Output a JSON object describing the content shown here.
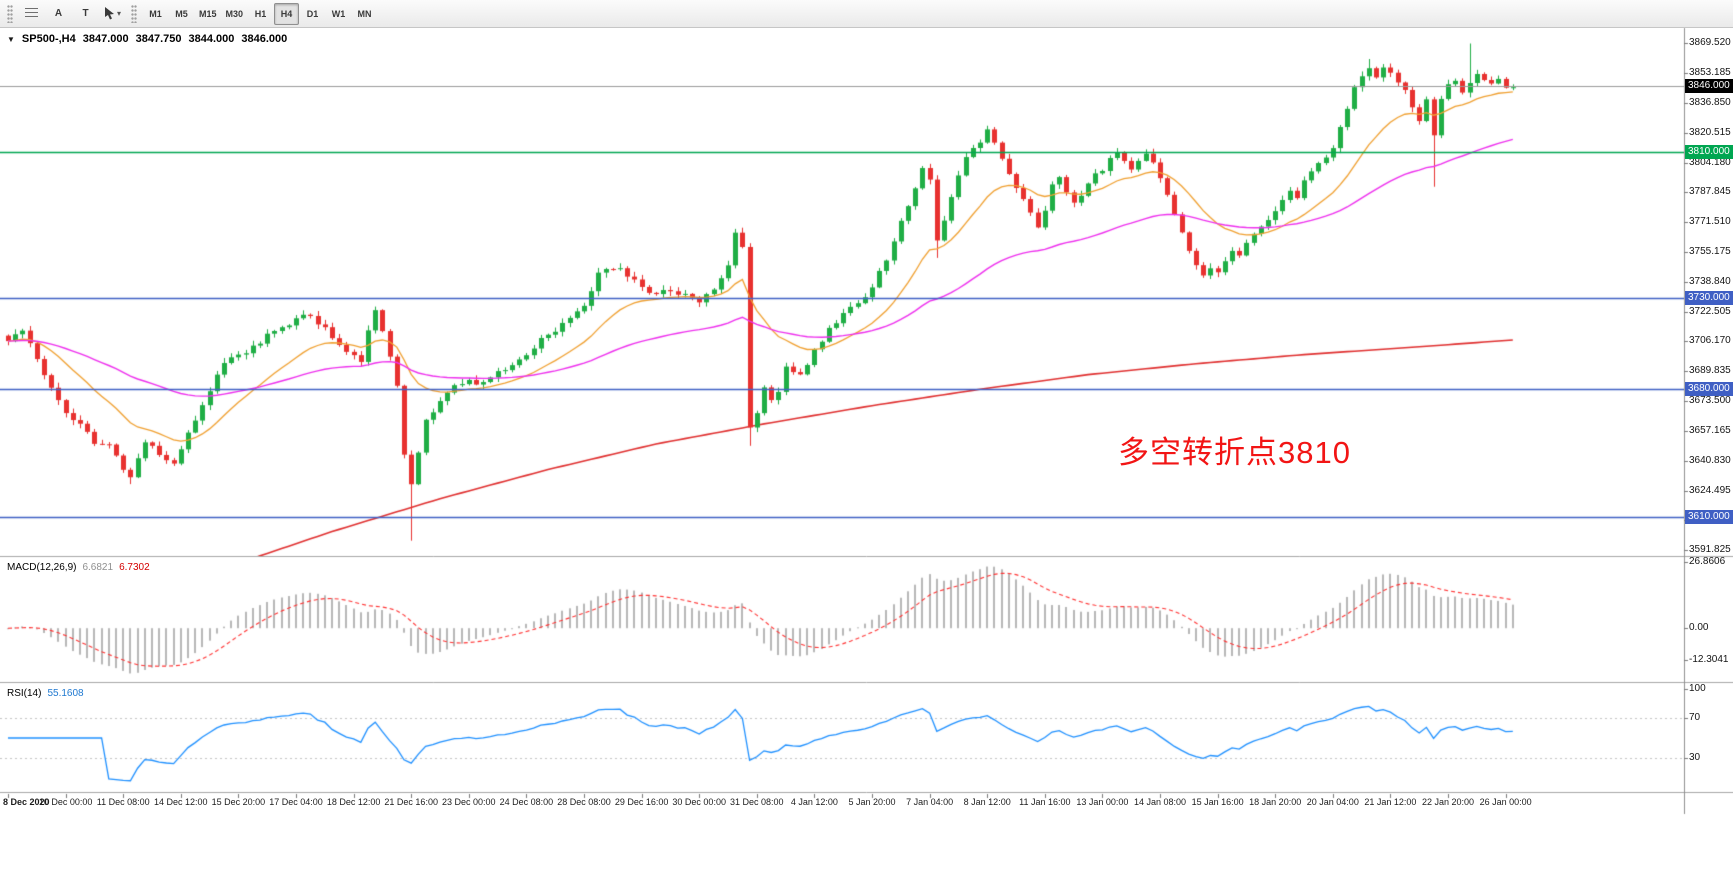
{
  "toolbar": {
    "buttons": {
      "a_label": "A",
      "t_label": "T"
    },
    "timeframes": [
      "M1",
      "M5",
      "M15",
      "M30",
      "H1",
      "H4",
      "D1",
      "W1",
      "MN"
    ],
    "active_timeframe": "H4"
  },
  "chart": {
    "title": {
      "collapse_icon": "▼",
      "symbol_period": "SP500-,H4",
      "open": "3847.000",
      "high": "3847.750",
      "low": "3844.000",
      "close": "3846.000"
    },
    "bid": {
      "price": 3846.0,
      "label": "3846.000",
      "tag_color": "#000000",
      "line_color": "#9a9a9a"
    }
  },
  "indicators": {
    "macd": {
      "label": "MACD(12,26,9)",
      "value_main": "6.6821",
      "value_signal": "6.7302"
    },
    "rsi": {
      "label": "RSI(14)",
      "value": "55.1608"
    }
  },
  "chart_data": [
    {
      "type": "candlestick",
      "title": "SP500-,H4",
      "bars": 210,
      "seed": 20210126,
      "noise": 3.0,
      "ylim": [
        3588.6,
        3878.0
      ],
      "price_axis_labels": [
        "3869.520",
        "3853.185",
        "3836.850",
        "3820.515",
        "3804.180",
        "3787.845",
        "3771.510",
        "3755.175",
        "3738.840",
        "3722.505",
        "3706.170",
        "3689.835",
        "3673.500",
        "3657.165",
        "3640.830",
        "3624.495",
        "3608.160",
        "3591.825"
      ],
      "close_waypoints": [
        [
          0,
          3706
        ],
        [
          2,
          3712
        ],
        [
          4,
          3697
        ],
        [
          6,
          3681
        ],
        [
          8,
          3668
        ],
        [
          10,
          3661
        ],
        [
          12,
          3651
        ],
        [
          14,
          3649
        ],
        [
          16,
          3637
        ],
        [
          17,
          3633
        ],
        [
          19,
          3651
        ],
        [
          21,
          3645
        ],
        [
          23,
          3639
        ],
        [
          25,
          3656
        ],
        [
          27,
          3671
        ],
        [
          29,
          3689
        ],
        [
          31,
          3697
        ],
        [
          33,
          3701
        ],
        [
          35,
          3706
        ],
        [
          37,
          3713
        ],
        [
          39,
          3716
        ],
        [
          41,
          3721
        ],
        [
          43,
          3717
        ],
        [
          45,
          3709
        ],
        [
          47,
          3701
        ],
        [
          49,
          3696
        ],
        [
          50,
          3711
        ],
        [
          51,
          3722
        ],
        [
          52,
          3713
        ],
        [
          53,
          3699
        ],
        [
          54,
          3681
        ],
        [
          55,
          3645
        ],
        [
          56,
          3627
        ],
        [
          57,
          3646
        ],
        [
          58,
          3663
        ],
        [
          60,
          3673
        ],
        [
          62,
          3681
        ],
        [
          64,
          3685
        ],
        [
          66,
          3683
        ],
        [
          68,
          3689
        ],
        [
          70,
          3693
        ],
        [
          72,
          3699
        ],
        [
          74,
          3707
        ],
        [
          76,
          3713
        ],
        [
          78,
          3719
        ],
        [
          80,
          3727
        ],
        [
          82,
          3743
        ],
        [
          84,
          3747
        ],
        [
          86,
          3743
        ],
        [
          88,
          3737
        ],
        [
          90,
          3731
        ],
        [
          92,
          3735
        ],
        [
          94,
          3731
        ],
        [
          96,
          3729
        ],
        [
          98,
          3735
        ],
        [
          100,
          3749
        ],
        [
          101,
          3765
        ],
        [
          102,
          3758
        ],
        [
          103,
          3660
        ],
        [
          104,
          3666
        ],
        [
          105,
          3681
        ],
        [
          106,
          3673
        ],
        [
          107,
          3679
        ],
        [
          108,
          3691
        ],
        [
          110,
          3687
        ],
        [
          112,
          3701
        ],
        [
          114,
          3713
        ],
        [
          116,
          3721
        ],
        [
          118,
          3727
        ],
        [
          120,
          3736
        ],
        [
          122,
          3751
        ],
        [
          124,
          3771
        ],
        [
          126,
          3789
        ],
        [
          127,
          3801
        ],
        [
          128,
          3796
        ],
        [
          129,
          3761
        ],
        [
          130,
          3773
        ],
        [
          131,
          3786
        ],
        [
          132,
          3796
        ],
        [
          133,
          3806
        ],
        [
          134,
          3811
        ],
        [
          135,
          3816
        ],
        [
          136,
          3821
        ],
        [
          137,
          3816
        ],
        [
          138,
          3806
        ],
        [
          139,
          3799
        ],
        [
          140,
          3791
        ],
        [
          141,
          3783
        ],
        [
          142,
          3776
        ],
        [
          143,
          3769
        ],
        [
          144,
          3779
        ],
        [
          145,
          3791
        ],
        [
          146,
          3796
        ],
        [
          147,
          3789
        ],
        [
          148,
          3781
        ],
        [
          149,
          3787
        ],
        [
          150,
          3793
        ],
        [
          151,
          3799
        ],
        [
          152,
          3801
        ],
        [
          153,
          3807
        ],
        [
          154,
          3811
        ],
        [
          155,
          3806
        ],
        [
          156,
          3801
        ],
        [
          157,
          3806
        ],
        [
          158,
          3809
        ],
        [
          159,
          3803
        ],
        [
          160,
          3796
        ],
        [
          161,
          3786
        ],
        [
          162,
          3776
        ],
        [
          163,
          3766
        ],
        [
          164,
          3756
        ],
        [
          165,
          3749
        ],
        [
          166,
          3743
        ],
        [
          167,
          3747
        ],
        [
          168,
          3745
        ],
        [
          169,
          3751
        ],
        [
          170,
          3757
        ],
        [
          171,
          3753
        ],
        [
          172,
          3759
        ],
        [
          173,
          3765
        ],
        [
          174,
          3769
        ],
        [
          175,
          3773
        ],
        [
          176,
          3777
        ],
        [
          177,
          3783
        ],
        [
          178,
          3789
        ],
        [
          179,
          3786
        ],
        [
          180,
          3793
        ],
        [
          181,
          3799
        ],
        [
          182,
          3804
        ],
        [
          183,
          3807
        ],
        [
          184,
          3813
        ],
        [
          185,
          3823
        ],
        [
          186,
          3835
        ],
        [
          187,
          3846
        ],
        [
          188,
          3853
        ],
        [
          189,
          3857
        ],
        [
          190,
          3851
        ],
        [
          191,
          3855
        ],
        [
          192,
          3853
        ],
        [
          193,
          3848
        ],
        [
          194,
          3843
        ],
        [
          195,
          3836
        ],
        [
          196,
          3828
        ],
        [
          197,
          3840
        ],
        [
          198,
          3820
        ],
        [
          199,
          3838
        ],
        [
          200,
          3846
        ],
        [
          201,
          3850
        ],
        [
          202,
          3842
        ],
        [
          203,
          3848
        ],
        [
          204,
          3852
        ],
        [
          205,
          3849
        ],
        [
          206,
          3847
        ],
        [
          207,
          3849
        ],
        [
          208,
          3845
        ],
        [
          209,
          3846
        ]
      ],
      "wick_overrides": {
        "17": {
          "low": 3628
        },
        "56": {
          "low": 3597
        },
        "103": {
          "low": 3649
        },
        "129": {
          "low": 3752
        },
        "189": {
          "high": 3861
        },
        "198": {
          "low": 3791
        },
        "203": {
          "high": 3869.5
        }
      },
      "colors": {
        "up": "#1fae45",
        "down": "#e8312f"
      },
      "overlays": [
        {
          "name": "ma-fast",
          "type": "ema",
          "period": 16,
          "color": "#f0a030"
        },
        {
          "name": "ma-medium",
          "type": "ema",
          "period": 55,
          "color": "#ee2fee"
        },
        {
          "name": "ma-slow",
          "type": "points",
          "color": "#e03030",
          "points": [
            [
              30,
              3582
            ],
            [
              45,
              3602
            ],
            [
              60,
              3620
            ],
            [
              75,
              3636
            ],
            [
              90,
              3650
            ],
            [
              105,
              3661
            ],
            [
              120,
              3671
            ],
            [
              135,
              3680
            ],
            [
              150,
              3688
            ],
            [
              165,
              3694
            ],
            [
              180,
              3699
            ],
            [
              195,
              3703
            ],
            [
              209,
              3707
            ]
          ]
        }
      ],
      "hlines": [
        {
          "price": 3810,
          "label": "3810.000",
          "color": "#00a651"
        },
        {
          "price": 3730,
          "label": "3730.000",
          "color": "#3f5fc4"
        },
        {
          "price": 3680,
          "label": "3680.000",
          "color": "#3f5fc4"
        },
        {
          "price": 3610,
          "label": "3610.000",
          "color": "#3f5fc4"
        }
      ],
      "x_labels": [
        "8 Dec 2020",
        "10 Dec 00:00",
        "11 Dec 08:00",
        "14 Dec 12:00",
        "15 Dec 20:00",
        "17 Dec 04:00",
        "18 Dec 12:00",
        "21 Dec 16:00",
        "23 Dec 00:00",
        "24 Dec 08:00",
        "28 Dec 08:00",
        "29 Dec 16:00",
        "30 Dec 00:00",
        "31 Dec 08:00",
        "4 Jan 12:00",
        "5 Jan 20:00",
        "7 Jan 04:00",
        "8 Jan 12:00",
        "11 Jan 16:00",
        "13 Jan 00:00",
        "14 Jan 08:00",
        "15 Jan 16:00",
        "18 Jan 20:00",
        "20 Jan 04:00",
        "21 Jan 12:00",
        "22 Jan 20:00",
        "26 Jan 00:00"
      ],
      "label_every": 8,
      "annotation": {
        "text": "多空转折点3810",
        "color": "#f21515"
      }
    },
    {
      "type": "macd",
      "label": "MACD(12,26,9)",
      "params": [
        12,
        26,
        9
      ],
      "values": [
        6.6821,
        6.7302
      ],
      "axis_labels": [
        "26.8606",
        "0.00",
        "-12.3041"
      ],
      "colors": {
        "histogram": "#b8b8b8",
        "signal": "#ff3333"
      }
    },
    {
      "type": "rsi",
      "label": "RSI(14)",
      "period": 14,
      "value": 55.1608,
      "levels": [
        70,
        30
      ],
      "axis_labels": [
        "100",
        "70",
        "30"
      ],
      "color": "#1e90ff",
      "level_color": "#c4c4c4",
      "ylim": [
        -5,
        105
      ]
    }
  ]
}
